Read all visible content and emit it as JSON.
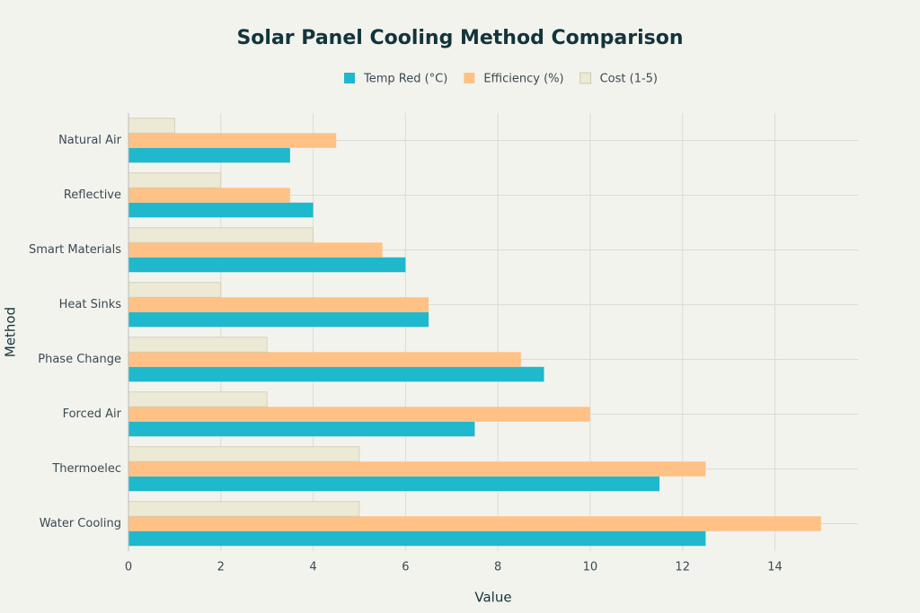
{
  "chart_data": {
    "type": "hbar",
    "title": "Solar Panel Cooling Method Comparison",
    "x_label": "Value",
    "y_label": "Method",
    "categories": [
      "Natural Air",
      "Reflective",
      "Smart Materials",
      "Heat Sinks",
      "Phase Change",
      "Forced Air",
      "Thermoelec",
      "Water Cooling"
    ],
    "series": [
      {
        "name": "Temp Red (°C)",
        "color": "#1fb8cd",
        "values": [
          3.5,
          4,
          6,
          6.5,
          9,
          7.5,
          11.5,
          12.5
        ]
      },
      {
        "name": "Efficiency (%)",
        "color": "#ffc185",
        "values": [
          4.5,
          3.5,
          5.5,
          6.5,
          8.5,
          10,
          12.5,
          15
        ]
      },
      {
        "name": "Cost (1-5)",
        "color": "#ece9d4",
        "values": [
          1,
          2,
          4,
          2,
          3,
          3,
          5,
          5
        ]
      }
    ],
    "xlim": [
      0,
      15.8
    ],
    "xticks": [
      0,
      2,
      4,
      6,
      8,
      10,
      12,
      14
    ],
    "grid": true
  }
}
